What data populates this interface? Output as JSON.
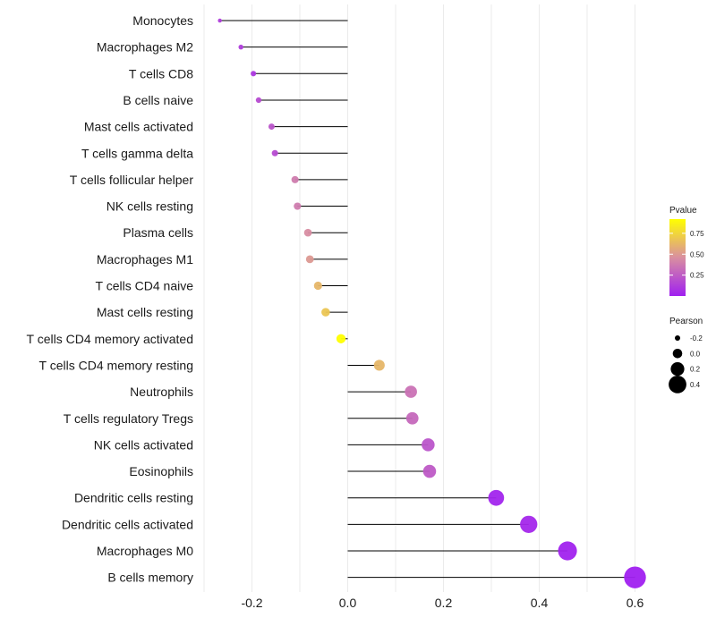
{
  "chart_data": {
    "type": "lollipop",
    "categories": [
      "Monocytes",
      "Macrophages M2",
      "T cells CD8",
      "B cells naive",
      "Mast cells activated",
      "T cells gamma delta",
      "T cells follicular helper",
      "NK cells resting",
      "Plasma cells",
      "Macrophages M1",
      "T cells CD4 naive",
      "Mast cells resting",
      "T cells CD4 memory activated",
      "T cells CD4 memory resting",
      "Neutrophils",
      "T cells regulatory  Tregs ",
      "NK cells activated",
      "Eosinophils",
      "Dendritic cells resting",
      "Dendritic cells activated",
      "Macrophages M0",
      "B cells memory"
    ],
    "values": [
      -0.267,
      -0.223,
      -0.197,
      -0.186,
      -0.159,
      -0.152,
      -0.11,
      -0.105,
      -0.083,
      -0.079,
      -0.062,
      -0.046,
      -0.014,
      0.066,
      0.132,
      0.135,
      0.168,
      0.171,
      0.31,
      0.378,
      0.459,
      0.6
    ],
    "pvalues": [
      0.12,
      0.12,
      0.1,
      0.18,
      0.22,
      0.18,
      0.38,
      0.38,
      0.45,
      0.5,
      0.62,
      0.68,
      0.92,
      0.62,
      0.34,
      0.3,
      0.22,
      0.24,
      0.02,
      0.03,
      0.01,
      0.001
    ],
    "xlim": [
      -0.3,
      0.6
    ],
    "x_ticks": [
      -0.2,
      0.0,
      0.2,
      0.4,
      0.6
    ],
    "x_tick_labels": [
      "-0.2",
      "0.0",
      "0.2",
      "0.4",
      "0.6"
    ],
    "grid": true,
    "legend_color": {
      "title": "Pvalue",
      "ticks": [
        0.25,
        0.5,
        0.75
      ],
      "tick_labels": [
        "0.25",
        "0.50",
        "0.75"
      ],
      "range": [
        0,
        0.92
      ],
      "colors": {
        "low": "#a020f0",
        "mid": "#d98fa0",
        "high": "#ffff00"
      }
    },
    "legend_size": {
      "title": "Pearson",
      "values": [
        -0.2,
        0.0,
        0.2,
        0.4
      ],
      "labels": [
        "-0.2",
        "0.0",
        "0.2",
        "0.4"
      ]
    }
  }
}
